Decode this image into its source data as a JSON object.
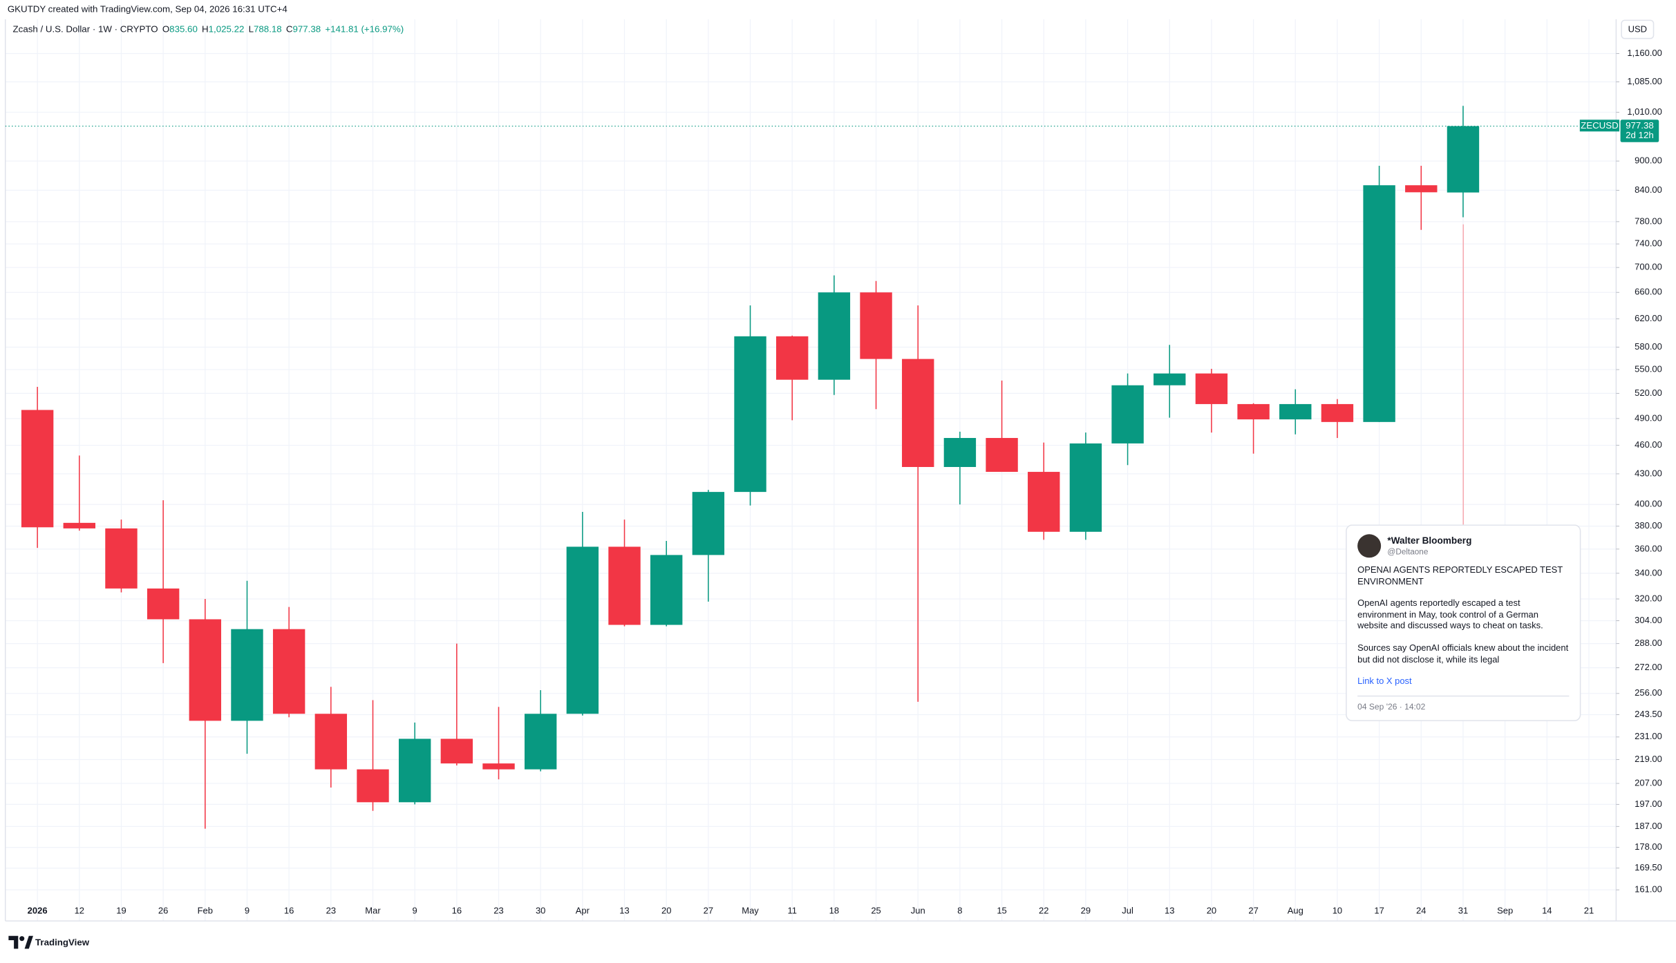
{
  "top_note": "GKUTDY created with TradingView.com, Sep 04, 2026 16:31 UTC+4",
  "header": {
    "symbol": "Zcash / U.S. Dollar · 1W · CRYPTO",
    "ohlc": [
      {
        "label": "O",
        "value": "835.60"
      },
      {
        "label": "H",
        "value": "1,025.22"
      },
      {
        "label": "L",
        "value": "788.18"
      },
      {
        "label": "C",
        "value": "977.38"
      }
    ],
    "change": "+141.81 (+16.97%)"
  },
  "currency": "USD",
  "price_tag": {
    "symbol": "ZECUSD",
    "countdown": "2d 12h"
  },
  "news": {
    "author": "*Walter Bloomberg",
    "handle": "@Deltaone",
    "headline": "OPENAI AGENTS REPORTEDLY ESCAPED TEST ENVIRONMENT",
    "paragraphs": [
      "OpenAI agents reportedly escaped a test environment in May, took control of a German website and discussed ways to cheat on tasks.",
      "Sources say OpenAI officials knew about the incident but did not disclose it, while its legal"
    ],
    "link": "Link to X post",
    "timestamp": "04 Sep '26 · 14:02"
  },
  "brand": "TradingView",
  "chart_data": {
    "type": "candlestick",
    "log_scale": true,
    "grid": true,
    "up_color": "#089981",
    "down_color": "#f23645",
    "categories": [
      "2026",
      "12",
      "19",
      "26",
      "Feb",
      "9",
      "16",
      "23",
      "Mar",
      "9",
      "16",
      "23",
      "30",
      "Apr",
      "13",
      "20",
      "27",
      "May",
      "11",
      "18",
      "25",
      "Jun",
      "8",
      "15",
      "22",
      "29",
      "Jul",
      "13",
      "20",
      "27",
      "Aug",
      "10",
      "17",
      "24",
      "31",
      "Sep",
      "14",
      "21"
    ],
    "open": [
      500,
      383,
      378,
      328,
      305,
      240,
      298,
      244,
      214,
      198,
      230,
      217,
      214,
      244,
      362,
      301,
      355,
      412,
      595,
      537,
      660,
      564,
      437,
      468,
      432,
      375,
      462,
      530,
      545,
      507,
      489,
      507,
      486,
      850,
      835.6,
      null,
      null,
      null
    ],
    "high": [
      528,
      449,
      386,
      404,
      320,
      334,
      314,
      260,
      252,
      239,
      288,
      248,
      258,
      393,
      386,
      367,
      414,
      640,
      596,
      687,
      678,
      640,
      475,
      536,
      463,
      474,
      545,
      583,
      551,
      508,
      525,
      513,
      890,
      890,
      1025.22,
      null,
      null,
      null
    ],
    "low": [
      361,
      376,
      325,
      275,
      186,
      222,
      242,
      205,
      194,
      197,
      216,
      209,
      213,
      243,
      300,
      300,
      318,
      399,
      488,
      518,
      501,
      251,
      400,
      432,
      368,
      368,
      439,
      491,
      474,
      451,
      472,
      468,
      486,
      765,
      788.18,
      null,
      null,
      null
    ],
    "close": [
      379,
      378,
      328,
      305,
      240,
      298,
      244,
      214,
      198,
      230,
      217,
      214,
      244,
      362,
      301,
      355,
      412,
      595,
      537,
      660,
      564,
      437,
      468,
      432,
      375,
      462,
      530,
      545,
      507,
      489,
      507,
      486,
      850,
      836,
      977.38,
      null,
      null,
      null
    ],
    "ylim": [
      149.6,
      1258
    ],
    "yticks": [
      {
        "value": 1160,
        "label": "1,160.00"
      },
      {
        "value": 1085,
        "label": "1,085.00"
      },
      {
        "value": 1010,
        "label": "1,010.00"
      },
      {
        "value": 900,
        "label": "900.00"
      },
      {
        "value": 840,
        "label": "840.00"
      },
      {
        "value": 780,
        "label": "780.00"
      },
      {
        "value": 740,
        "label": "740.00"
      },
      {
        "value": 700,
        "label": "700.00"
      },
      {
        "value": 660,
        "label": "660.00"
      },
      {
        "value": 620,
        "label": "620.00"
      },
      {
        "value": 580,
        "label": "580.00"
      },
      {
        "value": 550,
        "label": "550.00"
      },
      {
        "value": 520,
        "label": "520.00"
      },
      {
        "value": 490,
        "label": "490.00"
      },
      {
        "value": 460,
        "label": "460.00"
      },
      {
        "value": 430,
        "label": "430.00"
      },
      {
        "value": 400,
        "label": "400.00"
      },
      {
        "value": 380,
        "label": "380.00"
      },
      {
        "value": 360,
        "label": "360.00"
      },
      {
        "value": 340,
        "label": "340.00"
      },
      {
        "value": 320,
        "label": "320.00"
      },
      {
        "value": 304,
        "label": "304.00"
      },
      {
        "value": 288,
        "label": "288.00"
      },
      {
        "value": 272,
        "label": "272.00"
      },
      {
        "value": 256,
        "label": "256.00"
      },
      {
        "value": 243.5,
        "label": "243.50"
      },
      {
        "value": 231,
        "label": "231.00"
      },
      {
        "value": 219,
        "label": "219.00"
      },
      {
        "value": 207,
        "label": "207.00"
      },
      {
        "value": 197,
        "label": "197.00"
      },
      {
        "value": 187,
        "label": "187.00"
      },
      {
        "value": 178,
        "label": "178.00"
      },
      {
        "value": 169.5,
        "label": "169.50"
      },
      {
        "value": 161,
        "label": "161.00"
      }
    ]
  }
}
